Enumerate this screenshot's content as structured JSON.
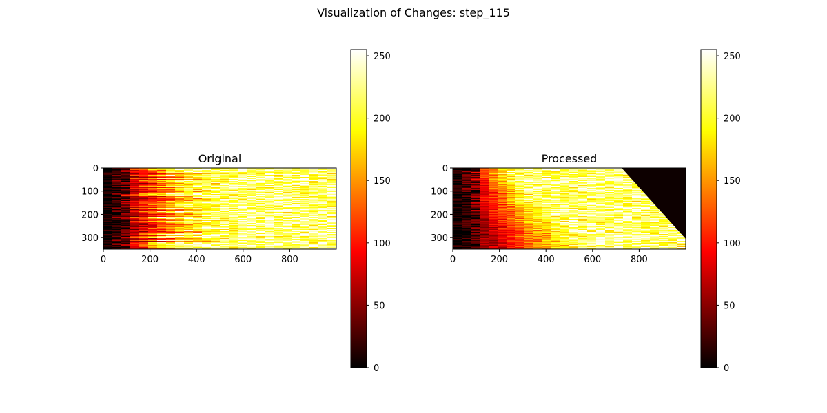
{
  "suptitle": "Visualization of Changes: step_115",
  "colormap": [
    "#000000",
    "#ff0000",
    "#ffff00",
    "#ffffff"
  ],
  "chart_data": [
    {
      "type": "heatmap",
      "title": "Original",
      "x_range": [
        0,
        1000
      ],
      "y_range": [
        0,
        350
      ],
      "x_ticks": [
        "0",
        "200",
        "400",
        "600",
        "800"
      ],
      "y_ticks": [
        "0",
        "100",
        "200",
        "300"
      ],
      "colorbar": {
        "range": [
          0,
          255
        ],
        "ticks": [
          "0",
          "50",
          "100",
          "150",
          "200",
          "250"
        ]
      },
      "transform": "none"
    },
    {
      "type": "heatmap",
      "title": "Processed",
      "x_range": [
        0,
        1000
      ],
      "y_range": [
        0,
        350
      ],
      "x_ticks": [
        "0",
        "200",
        "400",
        "600",
        "800"
      ],
      "y_ticks": [
        "0",
        "100",
        "200",
        "300"
      ],
      "colorbar": {
        "range": [
          0,
          255
        ],
        "ticks": [
          "0",
          "50",
          "100",
          "150",
          "200",
          "250"
        ]
      },
      "transform": "sorted rows, black triangular region at top-right"
    }
  ]
}
